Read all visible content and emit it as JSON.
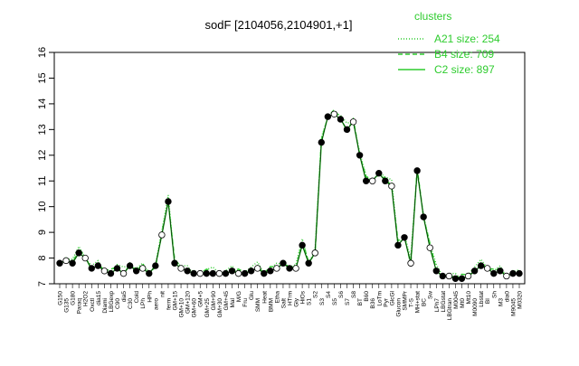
{
  "chart_data": {
    "type": "line",
    "title": "sodF [2104056,2104901,+1]",
    "xlabel": "",
    "ylabel": "",
    "ylim": [
      7,
      16
    ],
    "yticks": [
      7,
      8,
      9,
      10,
      11,
      12,
      13,
      14,
      15,
      16
    ],
    "grid": false,
    "legend": {
      "title": "clusters",
      "placement": "top-right",
      "entries": [
        {
          "label": "A21 size: 254",
          "style": "dotted"
        },
        {
          "label": "B4 size: 709",
          "style": "dashed"
        },
        {
          "label": "C2 size: 897",
          "style": "solid"
        }
      ]
    },
    "colors": {
      "series": "#2ecc2e",
      "points": "#000000"
    },
    "x_tick_labels": [
      "G150",
      "G135",
      "G180",
      "Paraq",
      "H2O2",
      "Oxctl",
      "dia15",
      "Diami",
      "LBGexp",
      "C90",
      "dia5",
      "C30",
      "Cold",
      "LPh",
      "HPh",
      "aero",
      "nit",
      "ferm",
      "GM+15",
      "GM+10",
      "GM+120",
      "GM+60",
      "GM+5",
      "GM+25",
      "GM+90",
      "GM+30",
      "GM+45",
      "Mal",
      "M/G",
      "Fru",
      "Glu",
      "SMM",
      "Heat",
      "BMM",
      "Etha",
      "Salt",
      "HTrm",
      "Gly",
      "HiOs",
      "S1",
      "S2",
      "S3",
      "S4",
      "S5",
      "S6",
      "S7",
      "S8",
      "BT",
      "B60",
      "B36",
      "LoTm",
      "Pyr",
      "GlcGl",
      "Glucon",
      "SMMPr",
      "T-S",
      "MH+stat",
      "BC",
      "Sw",
      "LPh7",
      "LBGstat",
      "LBGtran",
      "M0045",
      "Mt0",
      "Mt10",
      "M0090",
      "Lbstat",
      "BI",
      "Sh",
      "M3",
      "dia0",
      "M9045",
      "M0320"
    ],
    "series": [
      {
        "name": "",
        "values": [
          7.8,
          7.9,
          7.8,
          8.2,
          8.0,
          7.6,
          7.7,
          7.5,
          7.4,
          7.6,
          7.4,
          7.7,
          7.5,
          7.6,
          7.4,
          7.7,
          8.9,
          10.2,
          7.8,
          7.6,
          7.5,
          7.4,
          7.4,
          7.4,
          7.4,
          7.4,
          7.4,
          7.5,
          7.4,
          7.4,
          7.5,
          7.6,
          7.4,
          7.5,
          7.6,
          7.8,
          7.6,
          7.6,
          8.5,
          7.8,
          8.2,
          12.5,
          13.5,
          13.6,
          13.4,
          13.0,
          13.3,
          12.0,
          11.0,
          11.0,
          11.3,
          11.0,
          10.8,
          8.5,
          8.8,
          7.8,
          11.4,
          9.6,
          8.4,
          7.5,
          7.3,
          7.3,
          7.2,
          7.2,
          7.3,
          7.5,
          7.7,
          7.6,
          7.4,
          7.5,
          7.3,
          7.4,
          7.4
        ]
      }
    ]
  }
}
